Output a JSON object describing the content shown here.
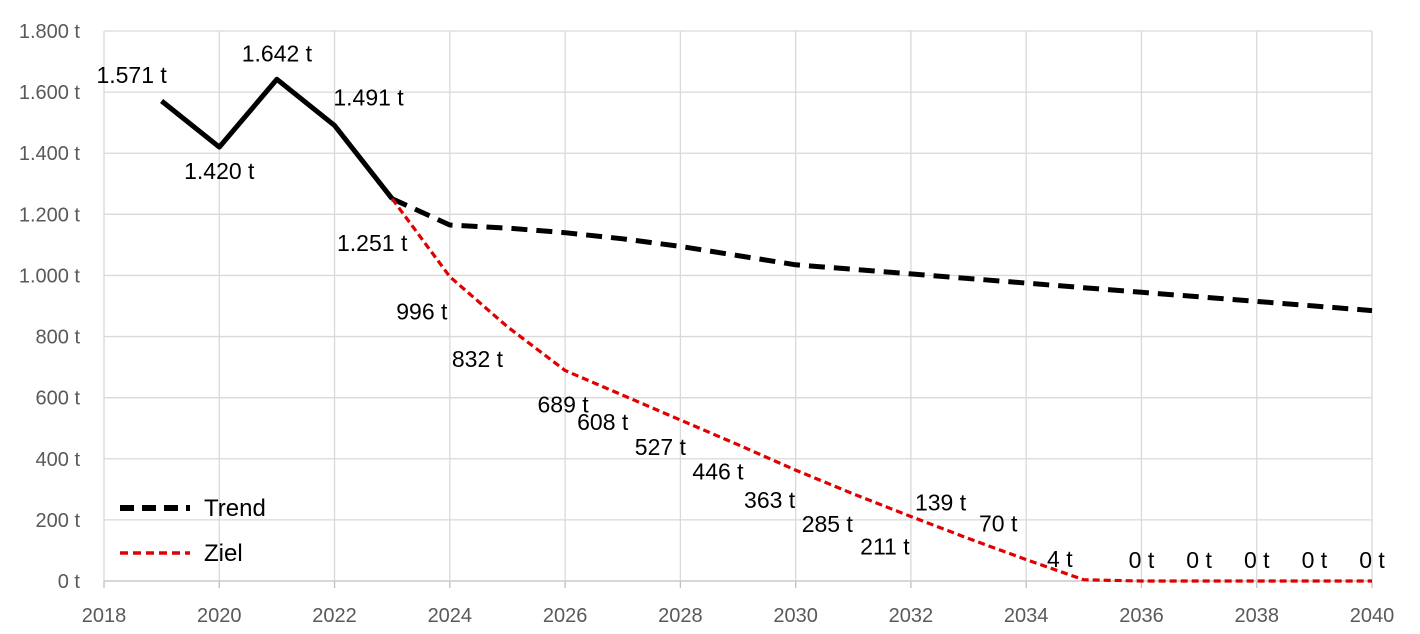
{
  "chart_data": {
    "type": "line",
    "x_axis": {
      "min": 2018,
      "max": 2040,
      "ticks": [
        2018,
        2020,
        2022,
        2024,
        2026,
        2028,
        2030,
        2032,
        2034,
        2036,
        2038,
        2040
      ]
    },
    "y_axis": {
      "min": 0,
      "max": 1800,
      "ticks": [
        0,
        200,
        400,
        600,
        800,
        1000,
        1200,
        1400,
        1600,
        1800
      ],
      "tick_labels": [
        "0 t",
        "200 t",
        "400 t",
        "600 t",
        "800 t",
        "1.000 t",
        "1.200 t",
        "1.400 t",
        "1.600 t",
        "1.800 t"
      ]
    },
    "grid": true,
    "legend_position": "bottom-left",
    "series": [
      {
        "key": "historical",
        "style": "solid",
        "color": "#000000",
        "x": [
          2019,
          2020,
          2021,
          2022,
          2023
        ],
        "y": [
          1571,
          1420,
          1642,
          1491,
          1251
        ],
        "labels": [
          "1.571 t",
          "1.420 t",
          "1.642 t",
          "1.491 t",
          "1.251 t"
        ]
      },
      {
        "key": "trend",
        "name": "Trend",
        "style": "dashed",
        "color": "#000000",
        "x": [
          2023,
          2024,
          2025,
          2026,
          2027,
          2028,
          2029,
          2030,
          2031,
          2032,
          2033,
          2034,
          2035,
          2036,
          2037,
          2038,
          2039,
          2040
        ],
        "y": [
          1251,
          1165,
          1155,
          1140,
          1120,
          1095,
          1065,
          1035,
          1020,
          1005,
          990,
          975,
          960,
          945,
          930,
          915,
          900,
          885
        ]
      },
      {
        "key": "ziel",
        "name": "Ziel",
        "style": "dashed",
        "color": "#e00000",
        "x": [
          2023,
          2024,
          2025,
          2026,
          2027,
          2028,
          2029,
          2030,
          2031,
          2032,
          2033,
          2034,
          2035,
          2036,
          2037,
          2038,
          2039,
          2040
        ],
        "y": [
          1251,
          996,
          832,
          689,
          608,
          527,
          446,
          363,
          285,
          211,
          139,
          70,
          4,
          0,
          0,
          0,
          0,
          0
        ],
        "labels": [
          "",
          "996 t",
          "832 t",
          "689 t",
          "608 t",
          "527 t",
          "446 t",
          "363 t",
          "285 t",
          "211 t",
          "139 t",
          "70 t",
          "4 t",
          "0 t",
          "0 t",
          "0 t",
          "0 t",
          "0 t"
        ]
      }
    ]
  }
}
